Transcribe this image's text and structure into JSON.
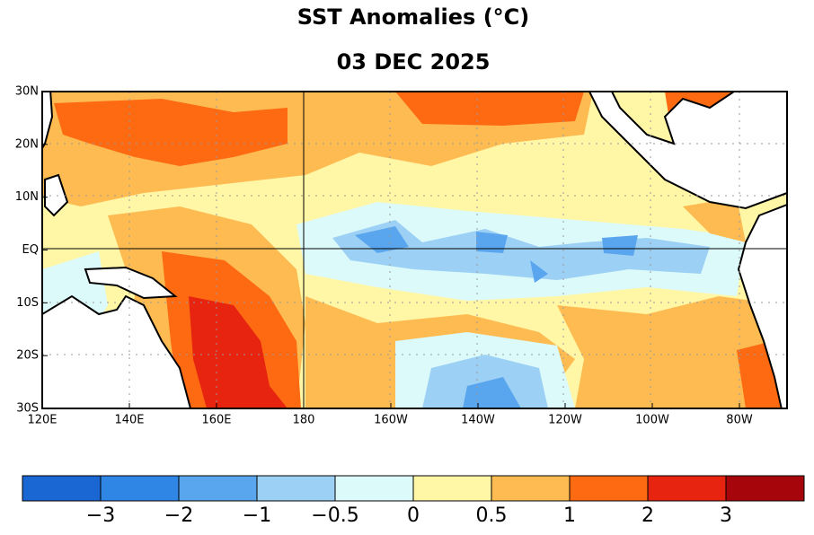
{
  "title": "SST Anomalies (°C)",
  "date": "03 DEC 2025",
  "map": {
    "lat_labels": [
      "30N",
      "20N",
      "10N",
      "EQ",
      "10S",
      "20S",
      "30S"
    ],
    "lon_labels": [
      "120E",
      "140E",
      "160E",
      "180",
      "160W",
      "140W",
      "120W",
      "100W",
      "80W"
    ]
  },
  "colorbar": {
    "colors": [
      "#1a66d2",
      "#2f86e4",
      "#5aa6ee",
      "#9dd0f5",
      "#dcfafa",
      "#fff6a6",
      "#fdbb52",
      "#fd6a12",
      "#e6240f",
      "#a7050c"
    ],
    "labels": [
      "−3",
      "−2",
      "−1",
      "−0.5",
      "0",
      "0.5",
      "1",
      "2",
      "3"
    ]
  }
}
